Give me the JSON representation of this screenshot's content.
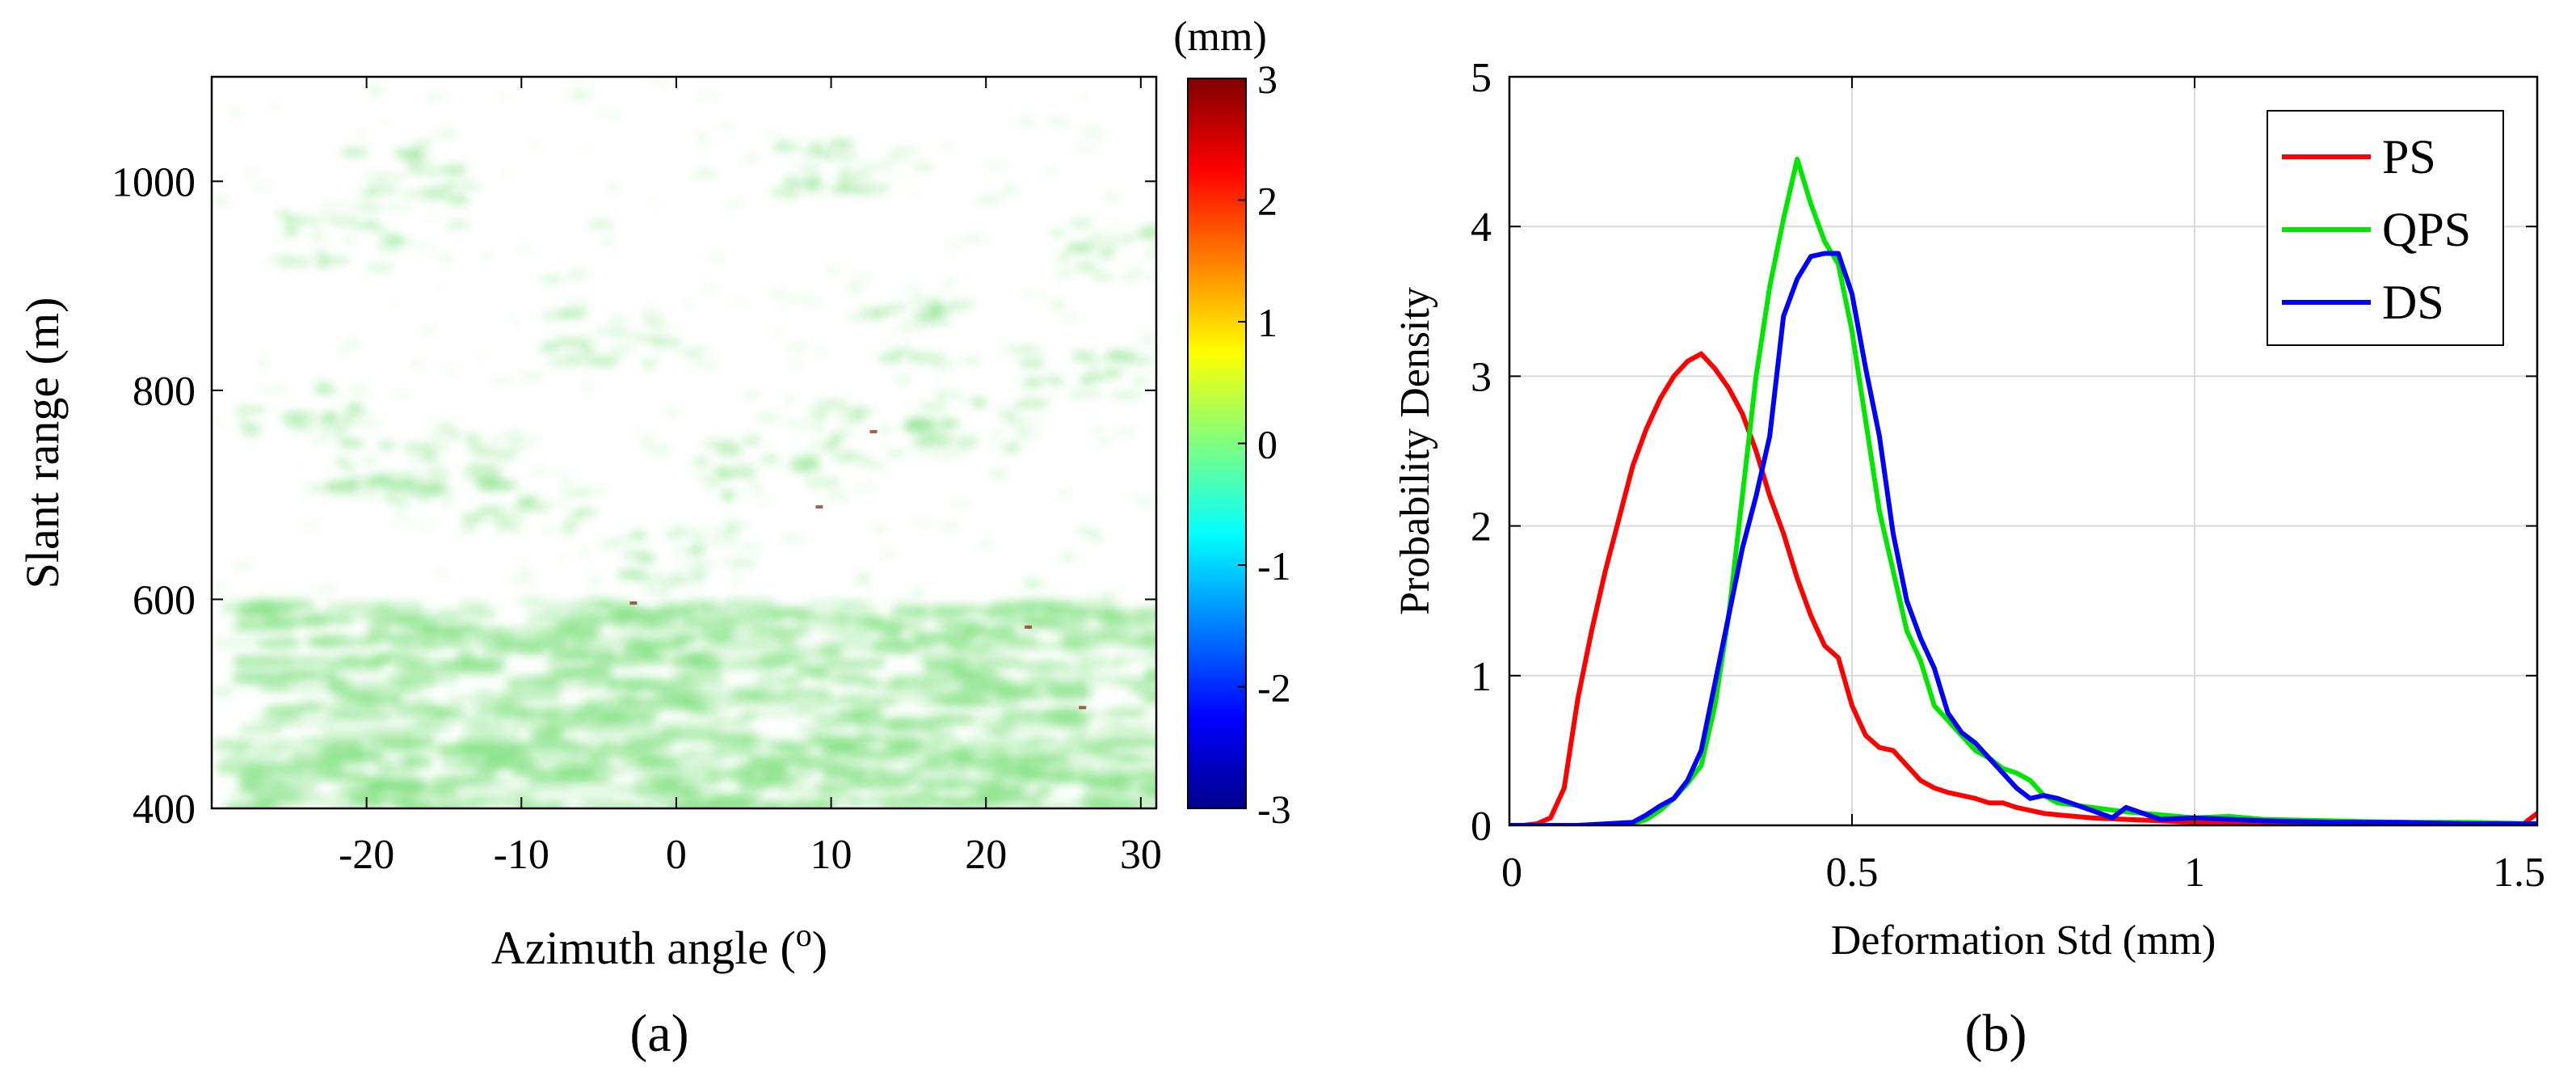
{
  "chart_data": [
    {
      "type": "heatmap",
      "panel_label": "(a)",
      "xlabel": "Azimuth angle (",
      "xlabel_sup": "o",
      "xlabel_end": ")",
      "ylabel": "Slant range (m)",
      "xlim": [
        -30,
        31
      ],
      "ylim": [
        400,
        1100
      ],
      "xticks": [
        -20,
        -10,
        0,
        10,
        20,
        30
      ],
      "xtick_labels": [
        "-20",
        "-10",
        "0",
        "10",
        "20",
        "30"
      ],
      "yticks": [
        400,
        600,
        800,
        1000
      ],
      "ytick_labels": [
        "400",
        "600",
        "800",
        "1000"
      ],
      "colorbar": {
        "label": "(mm)",
        "range": [
          -3,
          3
        ],
        "ticks": [
          3,
          2,
          1,
          0,
          -1,
          -2,
          -3
        ],
        "tick_labels": [
          "3",
          "2",
          "1",
          "0",
          "-1",
          "-2",
          "-3"
        ],
        "colormap": "jet"
      },
      "description_values": {
        "dominant_value_mm": 0,
        "dense_region_range_m": [
          400,
          600
        ],
        "sparse_region_range_m": [
          600,
          1100
        ]
      }
    },
    {
      "type": "line",
      "panel_label": "(b)",
      "xlabel": "Deformation Std (mm)",
      "ylabel": "Probability Density",
      "xlim": [
        0,
        1.5
      ],
      "ylim": [
        0,
        5
      ],
      "xticks": [
        0,
        0.5,
        1,
        1.5
      ],
      "xtick_labels": [
        "0",
        "0.5",
        "1",
        "1.5"
      ],
      "yticks": [
        0,
        1,
        2,
        3,
        4,
        5
      ],
      "ytick_labels": [
        "0",
        "1",
        "2",
        "3",
        "4",
        "5"
      ],
      "grid": true,
      "legend_position": "top-right",
      "series": [
        {
          "name": "PS",
          "color": "#ff0000",
          "x": [
            0,
            0.02,
            0.04,
            0.06,
            0.08,
            0.1,
            0.12,
            0.14,
            0.16,
            0.18,
            0.2,
            0.22,
            0.24,
            0.26,
            0.28,
            0.3,
            0.32,
            0.34,
            0.36,
            0.38,
            0.4,
            0.42,
            0.44,
            0.46,
            0.48,
            0.5,
            0.52,
            0.54,
            0.56,
            0.58,
            0.6,
            0.62,
            0.64,
            0.66,
            0.68,
            0.7,
            0.72,
            0.74,
            0.76,
            0.78,
            0.8,
            0.85,
            0.9,
            0.95,
            1.0,
            1.1,
            1.2,
            1.3,
            1.4,
            1.48,
            1.5
          ],
          "y": [
            0,
            0,
            0.01,
            0.05,
            0.25,
            0.85,
            1.3,
            1.7,
            2.05,
            2.4,
            2.65,
            2.85,
            3.0,
            3.1,
            3.15,
            3.05,
            2.92,
            2.75,
            2.5,
            2.2,
            1.95,
            1.65,
            1.4,
            1.2,
            1.12,
            0.8,
            0.6,
            0.52,
            0.5,
            0.4,
            0.3,
            0.25,
            0.22,
            0.2,
            0.18,
            0.15,
            0.15,
            0.12,
            0.1,
            0.08,
            0.07,
            0.05,
            0.04,
            0.03,
            0.02,
            0.02,
            0.01,
            0.01,
            0.01,
            0.01,
            0.08
          ]
        },
        {
          "name": "QPS",
          "color": "#00e600",
          "x": [
            0,
            0.1,
            0.18,
            0.2,
            0.22,
            0.24,
            0.26,
            0.28,
            0.3,
            0.32,
            0.34,
            0.36,
            0.38,
            0.4,
            0.42,
            0.44,
            0.46,
            0.48,
            0.5,
            0.52,
            0.54,
            0.56,
            0.58,
            0.6,
            0.62,
            0.64,
            0.66,
            0.68,
            0.7,
            0.72,
            0.74,
            0.76,
            0.78,
            0.8,
            0.85,
            0.9,
            0.95,
            1.0,
            1.05,
            1.1,
            1.2,
            1.3,
            1.4,
            1.5
          ],
          "y": [
            0,
            0,
            0.01,
            0.04,
            0.1,
            0.18,
            0.28,
            0.4,
            0.8,
            1.4,
            2.2,
            3.0,
            3.6,
            4.05,
            4.45,
            4.15,
            3.9,
            3.75,
            3.3,
            2.7,
            2.1,
            1.7,
            1.3,
            1.1,
            0.8,
            0.7,
            0.6,
            0.5,
            0.45,
            0.38,
            0.35,
            0.3,
            0.2,
            0.15,
            0.12,
            0.09,
            0.07,
            0.05,
            0.06,
            0.04,
            0.03,
            0.02,
            0.02,
            0.01
          ]
        },
        {
          "name": "DS",
          "color": "#0000ff",
          "x": [
            0,
            0.1,
            0.18,
            0.2,
            0.22,
            0.24,
            0.26,
            0.28,
            0.3,
            0.32,
            0.34,
            0.36,
            0.38,
            0.4,
            0.42,
            0.44,
            0.46,
            0.48,
            0.5,
            0.52,
            0.54,
            0.56,
            0.58,
            0.6,
            0.62,
            0.64,
            0.66,
            0.68,
            0.7,
            0.72,
            0.74,
            0.76,
            0.78,
            0.8,
            0.85,
            0.88,
            0.9,
            0.95,
            1.0,
            1.1,
            1.2,
            1.3,
            1.4,
            1.5
          ],
          "y": [
            0,
            0,
            0.02,
            0.07,
            0.13,
            0.18,
            0.3,
            0.5,
            0.95,
            1.4,
            1.85,
            2.2,
            2.6,
            3.4,
            3.65,
            3.8,
            3.82,
            3.82,
            3.55,
            3.05,
            2.6,
            1.95,
            1.5,
            1.25,
            1.05,
            0.75,
            0.62,
            0.55,
            0.45,
            0.35,
            0.25,
            0.18,
            0.2,
            0.18,
            0.1,
            0.05,
            0.12,
            0.04,
            0.05,
            0.03,
            0.02,
            0.02,
            0.01,
            0.01
          ]
        }
      ]
    }
  ]
}
